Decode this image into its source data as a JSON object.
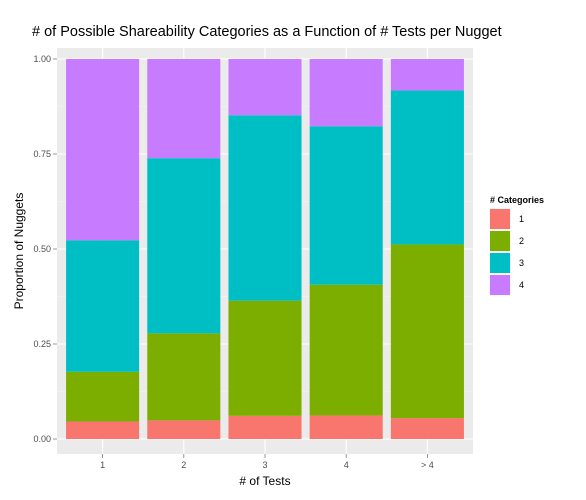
{
  "chart_data": {
    "type": "bar",
    "stacked": true,
    "title": "# of Possible Shareability Categories as a Function of # Tests per Nugget",
    "xlabel": "# of Tests",
    "ylabel": "Proportion of Nuggets",
    "categories": [
      "1",
      "2",
      "3",
      "4",
      "> 4"
    ],
    "ylim": [
      0,
      1
    ],
    "yticks": [
      "0.00",
      "0.25",
      "0.50",
      "0.75",
      "1.00"
    ],
    "grid": true,
    "legend": {
      "title": "# Categories",
      "position": "right"
    },
    "series": [
      {
        "name": "1",
        "color": "#F8766D",
        "values": [
          0.046,
          0.049,
          0.061,
          0.062,
          0.055
        ]
      },
      {
        "name": "2",
        "color": "#7CAE00",
        "values": [
          0.131,
          0.229,
          0.303,
          0.344,
          0.457
        ]
      },
      {
        "name": "3",
        "color": "#00BFC4",
        "values": [
          0.346,
          0.461,
          0.488,
          0.417,
          0.405
        ]
      },
      {
        "name": "4",
        "color": "#C77CFF",
        "values": [
          0.477,
          0.261,
          0.148,
          0.177,
          0.083
        ]
      }
    ]
  }
}
